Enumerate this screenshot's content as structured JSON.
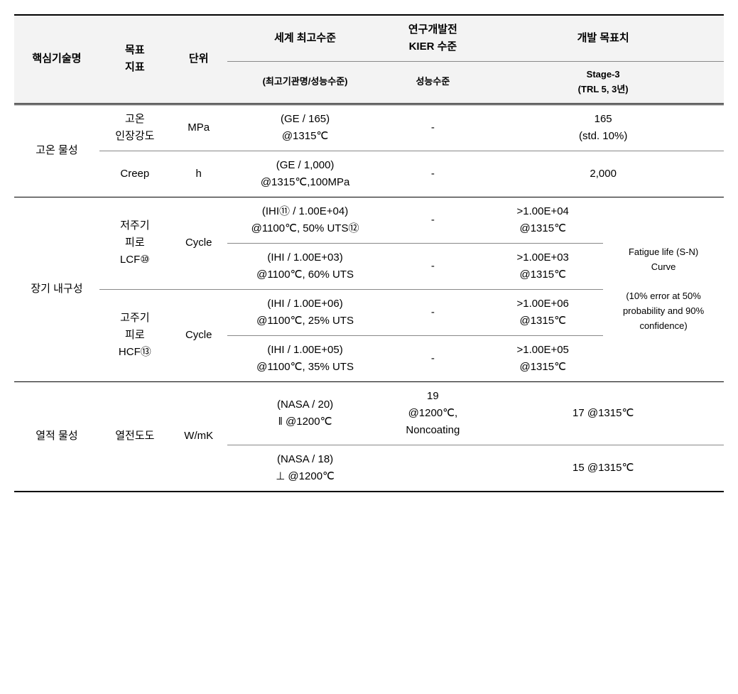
{
  "header": {
    "c1": "핵심기술명",
    "c2": "목표\n지표",
    "c3": "단위",
    "c4_top": "세계 최고수준",
    "c4_sub": "(최고기관명/성능수준)",
    "c5_top": "연구개발전\nKIER 수준",
    "c5_sub": "성능수준",
    "c6_top": "개발 목표치",
    "c6_sub": "Stage-3\n(TRL 5, 3년)"
  },
  "rows": {
    "r1": {
      "tech": "고온 물성",
      "metric": "고온\n인장강도",
      "unit": "MPa",
      "world": "(GE / 165)\n@1315℃",
      "kier": "-",
      "target": "165\n(std. 10%)"
    },
    "r2": {
      "metric": "Creep",
      "unit": "h",
      "world": "(GE / 1,000)\n@1315℃,100MPa",
      "kier": "-",
      "target": "2,000"
    },
    "r3": {
      "tech": "장기 내구성",
      "metric": "저주기\n피로\nLCF⑩",
      "unit": "Cycle",
      "world": "(IHI⑪ / 1.00E+04)\n@1100℃, 50% UTS⑫",
      "kier": "-",
      "target": ">1.00E+04\n@1315℃",
      "note": "Fatigue life (S-N)\nCurve\n\n(10% error at 50%\nprobability and 90%\nconfidence)"
    },
    "r4": {
      "world": "(IHI / 1.00E+03)\n@1100℃, 60% UTS",
      "kier": "-",
      "target": ">1.00E+03\n@1315℃"
    },
    "r5": {
      "metric": "고주기\n피로\nHCF⑬",
      "unit": "Cycle",
      "world": "(IHI / 1.00E+06)\n@1100℃, 25% UTS",
      "kier": "-",
      "target": ">1.00E+06\n@1315℃"
    },
    "r6": {
      "world": "(IHI / 1.00E+05)\n@1100℃, 35% UTS",
      "kier": "-",
      "target": ">1.00E+05\n@1315℃"
    },
    "r7": {
      "tech": "열적 물성",
      "metric": "열전도도",
      "unit": "W/mK",
      "world": "(NASA / 20)\n‖ @1200℃",
      "kier": "19\n@1200℃,\nNoncoating",
      "target": "17 @1315℃"
    },
    "r8": {
      "world": "(NASA / 18)\n⊥ @1200℃",
      "kier": "",
      "target": "15 @1315℃"
    }
  }
}
